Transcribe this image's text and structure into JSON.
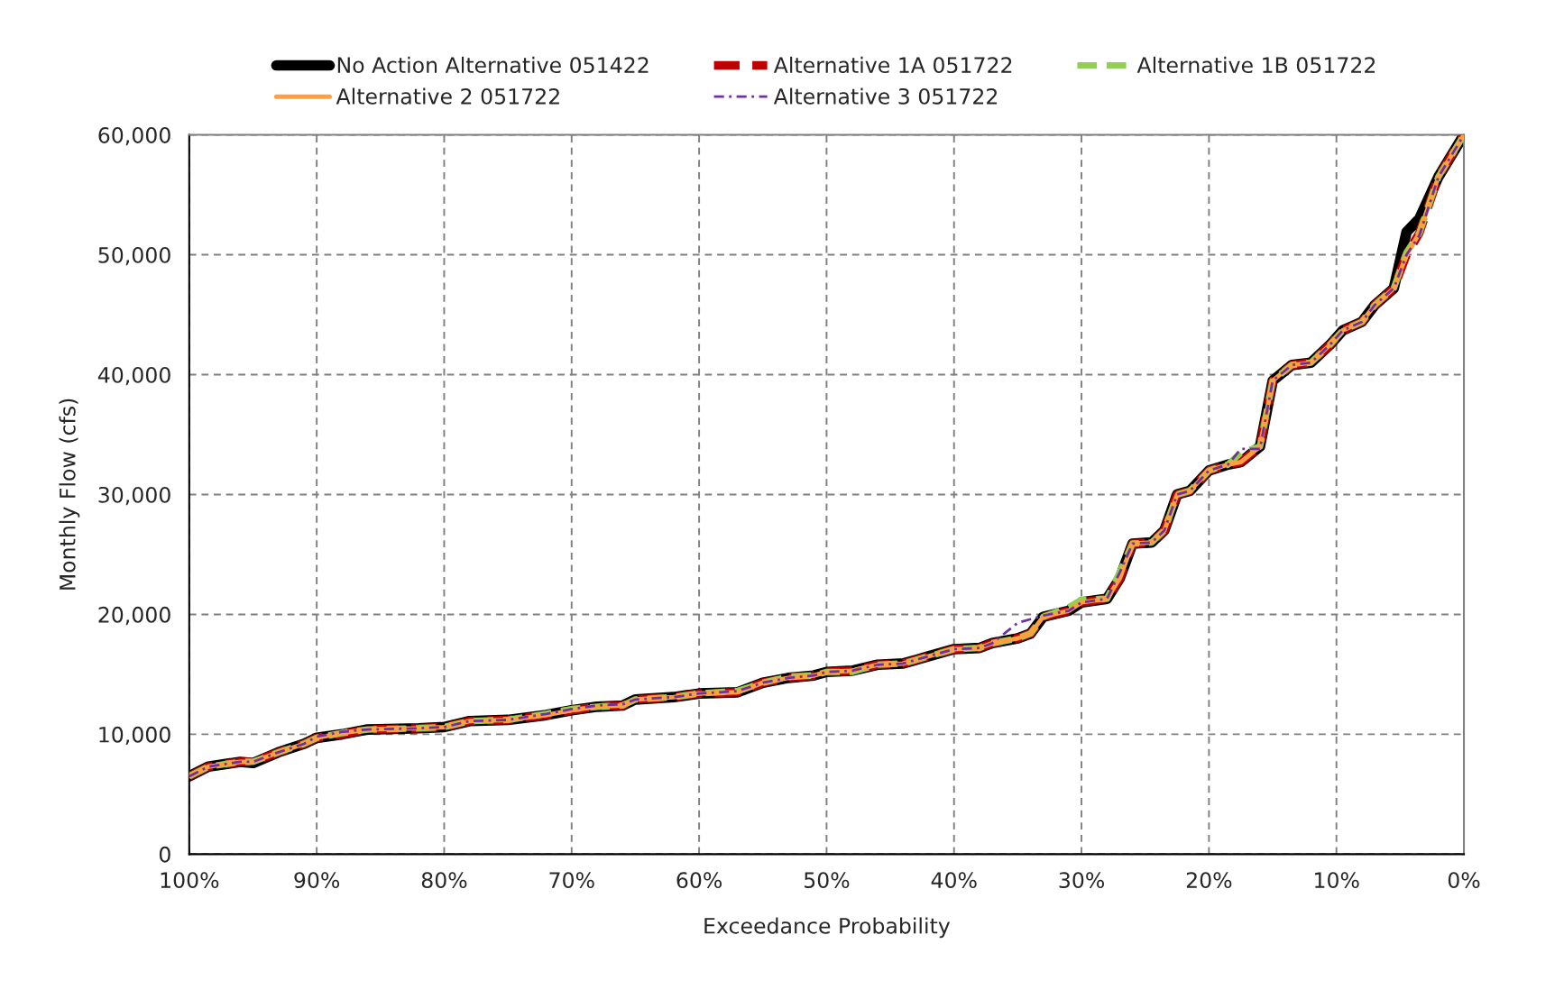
{
  "chart_data": {
    "type": "line",
    "xlabel": "Exceedance Probability",
    "ylabel": "Monthly Flow (cfs)",
    "x": [
      100,
      98.5,
      96,
      95,
      93,
      91,
      90,
      88,
      86,
      82,
      80,
      78,
      75,
      72,
      70,
      68,
      66,
      65,
      62,
      60,
      57,
      55,
      53,
      51,
      50,
      48,
      46,
      44,
      42,
      40,
      38,
      37,
      35,
      34,
      33,
      31,
      30,
      28,
      27,
      26,
      24.5,
      23.5,
      22.5,
      21.5,
      20,
      18.5,
      17.5,
      16,
      15,
      13.5,
      12,
      10.5,
      9.5,
      8,
      7,
      5.5,
      4.5,
      3.5,
      2,
      0
    ],
    "series": [
      {
        "name": "No Action Alternative 051422",
        "color": "#000000",
        "line_style": "solid",
        "values": [
          6500,
          7300,
          7700,
          7600,
          8500,
          9200,
          9700,
          10000,
          10400,
          10500,
          10600,
          11100,
          11200,
          11600,
          12000,
          12300,
          12400,
          12900,
          13100,
          13400,
          13500,
          14300,
          14700,
          14900,
          15200,
          15300,
          15800,
          15900,
          16500,
          17100,
          17200,
          17600,
          18000,
          18400,
          19800,
          20300,
          21000,
          21300,
          23000,
          25900,
          26000,
          27000,
          30000,
          30300,
          32000,
          32500,
          32700,
          34000,
          39500,
          40800,
          41000,
          42500,
          43700,
          44400,
          45800,
          47200,
          51900,
          53000,
          56500,
          60000
        ]
      },
      {
        "name": "Alternative 1A 051722",
        "color": "#c00000",
        "line_style": "dashed",
        "values": [
          6500,
          7300,
          7700,
          7700,
          8500,
          9200,
          9700,
          10000,
          10400,
          10500,
          10600,
          11100,
          11200,
          11600,
          12000,
          12300,
          12400,
          12900,
          13100,
          13400,
          13500,
          14300,
          14700,
          14900,
          15200,
          15300,
          15800,
          15900,
          16500,
          17100,
          17200,
          17600,
          18000,
          18400,
          19800,
          20300,
          21000,
          21300,
          23000,
          25900,
          26000,
          27000,
          30000,
          30300,
          32000,
          32500,
          32700,
          34000,
          39500,
          40800,
          41000,
          42500,
          43700,
          44400,
          45800,
          47200,
          50000,
          51800,
          56500,
          60000
        ]
      },
      {
        "name": "Alternative 1B 051722",
        "color": "#92d050",
        "line_style": "dashed",
        "values": [
          6500,
          7300,
          7700,
          7700,
          8500,
          9200,
          9700,
          10100,
          10400,
          10500,
          10600,
          11100,
          11200,
          11700,
          12100,
          12300,
          12400,
          12900,
          13100,
          13400,
          13600,
          14300,
          14800,
          14900,
          15200,
          15200,
          15800,
          15900,
          16500,
          17100,
          17200,
          17600,
          18000,
          18400,
          19800,
          20600,
          21200,
          21300,
          23500,
          25900,
          26000,
          27000,
          30000,
          30300,
          32000,
          32500,
          33500,
          34000,
          39500,
          40800,
          41000,
          42500,
          43700,
          44400,
          45800,
          47200,
          50200,
          51800,
          56500,
          60000
        ]
      },
      {
        "name": "Alternative 2 051722",
        "color": "#ffa040",
        "line_style": "solid",
        "values": [
          6500,
          7300,
          7700,
          7700,
          8500,
          9200,
          9700,
          10100,
          10400,
          10500,
          10600,
          11100,
          11200,
          11600,
          12000,
          12300,
          12400,
          12900,
          13100,
          13400,
          13500,
          14300,
          14700,
          14900,
          15200,
          15300,
          15800,
          15900,
          16500,
          17100,
          17200,
          17600,
          18000,
          18400,
          19800,
          20300,
          21000,
          21300,
          23000,
          25900,
          26000,
          27000,
          30000,
          30300,
          32000,
          32500,
          32700,
          34000,
          39500,
          40800,
          41000,
          42500,
          43700,
          44400,
          45800,
          47200,
          50000,
          51800,
          56500,
          60000
        ]
      },
      {
        "name": "Alternative 3 051722",
        "color": "#7030a0",
        "line_style": "dashdot",
        "values": [
          6500,
          7300,
          7700,
          7700,
          8500,
          9200,
          9800,
          10200,
          10400,
          10500,
          10600,
          11100,
          11200,
          11700,
          12100,
          12400,
          12500,
          12900,
          13100,
          13400,
          13600,
          14300,
          14700,
          14900,
          15200,
          15300,
          15800,
          15900,
          16500,
          17100,
          17200,
          17600,
          19300,
          19600,
          19900,
          20300,
          21000,
          21300,
          23500,
          25900,
          26000,
          27000,
          30000,
          30300,
          32000,
          32500,
          33800,
          33800,
          39500,
          40800,
          41000,
          42500,
          43700,
          44400,
          45800,
          47200,
          50000,
          51600,
          56500,
          60000
        ]
      }
    ],
    "xlim": [
      100,
      0
    ],
    "xticks": [
      {
        "value": 100,
        "label": "100%"
      },
      {
        "value": 90,
        "label": "90%"
      },
      {
        "value": 80,
        "label": "80%"
      },
      {
        "value": 70,
        "label": "70%"
      },
      {
        "value": 60,
        "label": "60%"
      },
      {
        "value": 50,
        "label": "50%"
      },
      {
        "value": 40,
        "label": "40%"
      },
      {
        "value": 30,
        "label": "30%"
      },
      {
        "value": 20,
        "label": "20%"
      },
      {
        "value": 10,
        "label": "10%"
      },
      {
        "value": 0,
        "label": "0%"
      }
    ],
    "ylim": [
      0,
      60000
    ],
    "yticks": [
      {
        "value": 0,
        "label": "0"
      },
      {
        "value": 10000,
        "label": "10,000"
      },
      {
        "value": 20000,
        "label": "20,000"
      },
      {
        "value": 30000,
        "label": "30,000"
      },
      {
        "value": 40000,
        "label": "40,000"
      },
      {
        "value": 50000,
        "label": "50,000"
      },
      {
        "value": 60000,
        "label": "60,000"
      }
    ],
    "grid": true,
    "legend": "top",
    "marker": "none"
  }
}
